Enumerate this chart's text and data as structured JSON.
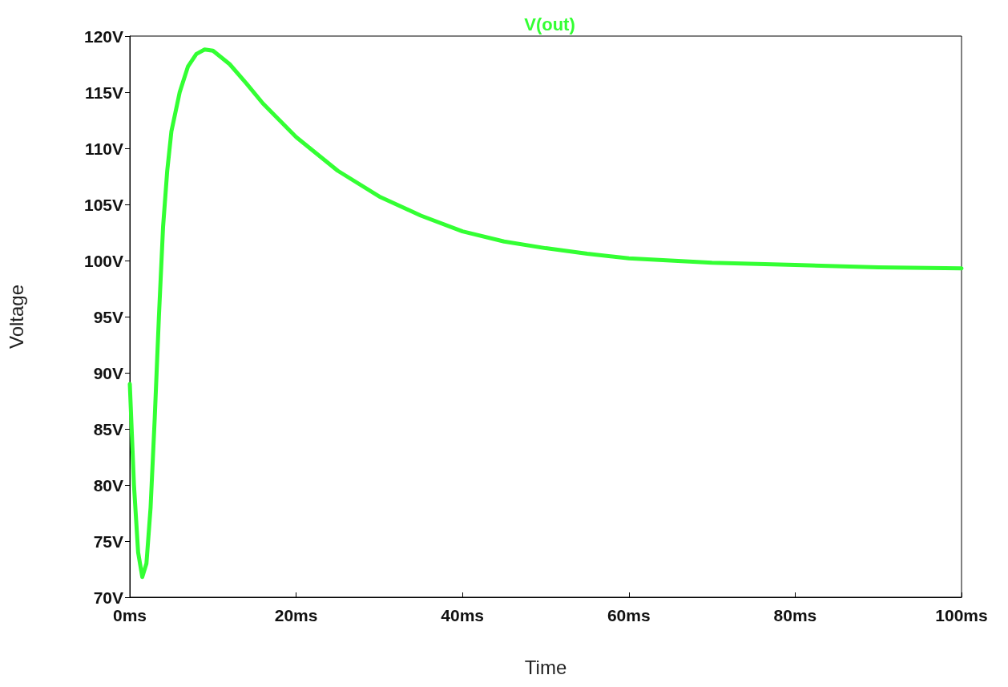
{
  "chart_data": {
    "type": "line",
    "title": "V(out)",
    "xlabel": "Time",
    "ylabel": "Voltage",
    "x": [
      0,
      0.5,
      1,
      1.5,
      2,
      2.5,
      3,
      3.5,
      4,
      4.5,
      5,
      6,
      7,
      8,
      9,
      10,
      12,
      14,
      16,
      18,
      20,
      25,
      30,
      35,
      40,
      45,
      50,
      55,
      60,
      70,
      80,
      90,
      100
    ],
    "series": [
      {
        "color": "#33ff33",
        "values": [
          89,
          80,
          74,
          71.8,
          73,
          78,
          86,
          95,
          103,
          108,
          111.5,
          115,
          117.3,
          118.4,
          118.8,
          118.7,
          117.5,
          115.8,
          114,
          112.5,
          111,
          108,
          105.7,
          104,
          102.6,
          101.7,
          101.1,
          100.6,
          100.2,
          99.8,
          99.6,
          99.4,
          99.3
        ]
      }
    ],
    "xlim": [
      0,
      100
    ],
    "xticks": [
      {
        "value": 0,
        "label": "0ms"
      },
      {
        "value": 20,
        "label": "20ms"
      },
      {
        "value": 40,
        "label": "40ms"
      },
      {
        "value": 60,
        "label": "60ms"
      },
      {
        "value": 80,
        "label": "80ms"
      },
      {
        "value": 100,
        "label": "100ms"
      }
    ],
    "ylim": [
      70,
      120
    ],
    "yticks": [
      {
        "value": 70,
        "label": "70V"
      },
      {
        "value": 75,
        "label": "75V"
      },
      {
        "value": 80,
        "label": "80V"
      },
      {
        "value": 85,
        "label": "85V"
      },
      {
        "value": 90,
        "label": "90V"
      },
      {
        "value": 95,
        "label": "95V"
      },
      {
        "value": 100,
        "label": "100V"
      },
      {
        "value": 105,
        "label": "105V"
      },
      {
        "value": 110,
        "label": "110V"
      },
      {
        "value": 115,
        "label": "115V"
      },
      {
        "value": 120,
        "label": "120V"
      }
    ],
    "grid": false,
    "marker": "none",
    "line_style": "solid"
  }
}
